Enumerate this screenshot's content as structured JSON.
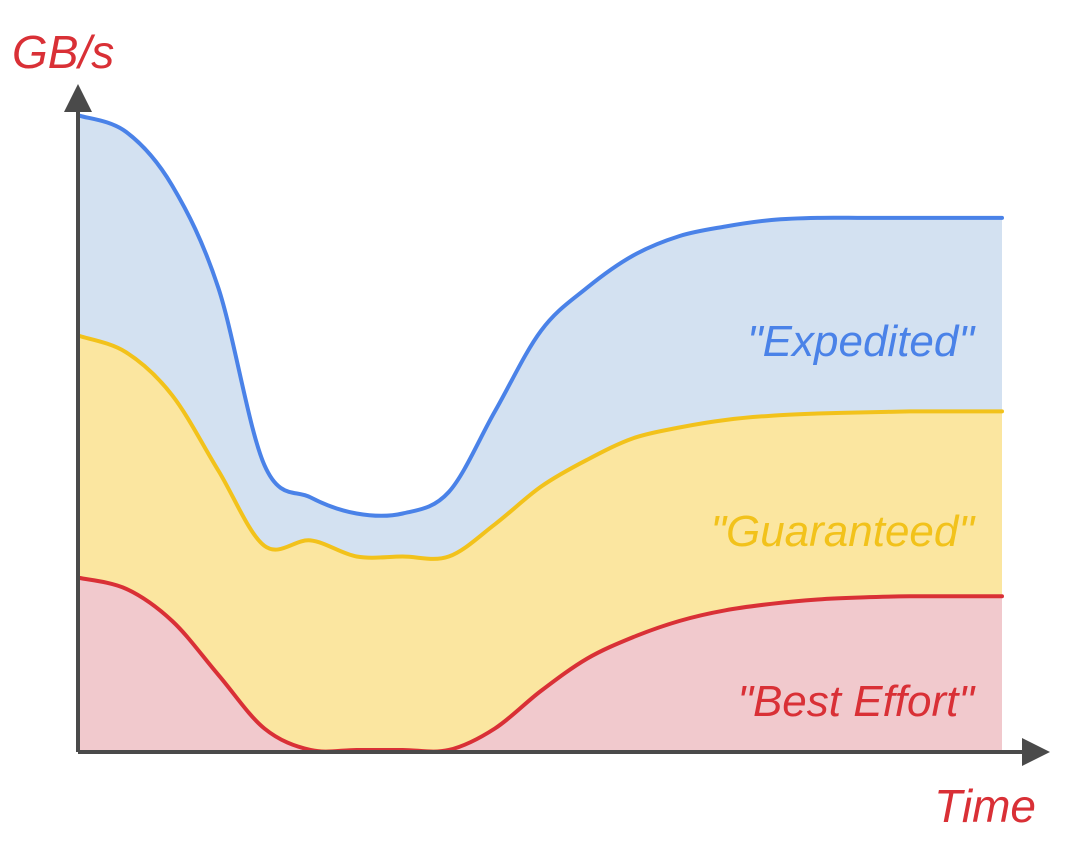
{
  "chart_data": {
    "type": "area",
    "stacked": true,
    "ylabel": "GB/s",
    "xlabel": "Time",
    "xlim": [
      0,
      10
    ],
    "ylim": [
      0,
      6
    ],
    "grid": false,
    "x": [
      0,
      0.5,
      1,
      1.5,
      2,
      2.5,
      3,
      3.5,
      4,
      4.5,
      5,
      5.5,
      6,
      6.5,
      7,
      7.5,
      8,
      8.5,
      9,
      9.5,
      10
    ],
    "series": [
      {
        "name": "\"Best Effort\"",
        "color": "#d93036",
        "fill": "#f1c9cd",
        "values": [
          1.6,
          1.5,
          1.2,
          0.7,
          0.2,
          0,
          0,
          0,
          0,
          0.2,
          0.55,
          0.85,
          1.05,
          1.2,
          1.3,
          1.36,
          1.4,
          1.42,
          1.43,
          1.43,
          1.43
        ]
      },
      {
        "name": "\"Guaranteed\"",
        "color": "#f2c21b",
        "fill": "#fbe6a0",
        "values": [
          2.25,
          2.2,
          2.1,
          1.9,
          1.7,
          1.95,
          1.8,
          1.8,
          1.8,
          1.9,
          1.9,
          1.85,
          1.85,
          1.8,
          1.77,
          1.75,
          1.73,
          1.72,
          1.72,
          1.72,
          1.72
        ]
      },
      {
        "name": "\"Expedited\"",
        "color": "#4a82e8",
        "fill": "#d3e1f1",
        "values": [
          2.05,
          2.05,
          1.95,
          1.7,
          0.75,
          0.4,
          0.4,
          0.4,
          0.6,
          1.05,
          1.45,
          1.6,
          1.7,
          1.78,
          1.8,
          1.82,
          1.82,
          1.81,
          1.8,
          1.8,
          1.8
        ]
      }
    ],
    "colors": {
      "axis": "#4a4a4a",
      "axis_title": "#d93036"
    }
  }
}
